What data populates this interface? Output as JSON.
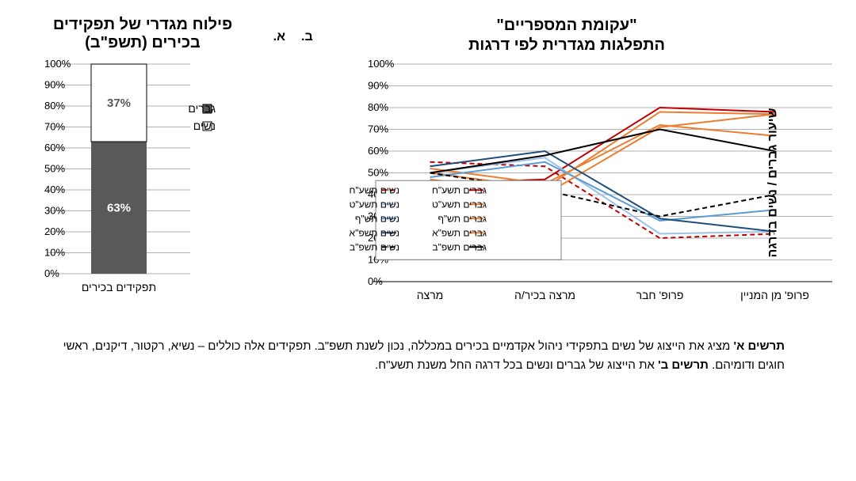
{
  "panelA": {
    "letter": "א.",
    "title_line1": "פילוח מגדרי של תפקידים",
    "title_line2": "בכירים (תשפ\"ב)",
    "type": "stacked-bar",
    "ylim": [
      0,
      100
    ],
    "ytick_step": 10,
    "ytick_suffix": "%",
    "category_label": "תפקידים בכירים",
    "segments": {
      "men": {
        "label": "גברים",
        "value": 63,
        "text": "63%",
        "color": "#595959",
        "text_color": "#ffffff"
      },
      "women": {
        "label": "נשים",
        "value": 37,
        "text": "37%",
        "color": "#ffffff",
        "text_color": "#595959",
        "border": "#000000"
      }
    },
    "legend_marker_border": "#000000",
    "grid_color": "#b0b0b0",
    "background_color": "#ffffff"
  },
  "panelB": {
    "letter": "ב.",
    "title_line1": "\"עקומת המספריים\"",
    "title_line2": "התפלגות מגדרית לפי דרגות",
    "type": "line",
    "ylim": [
      0,
      100
    ],
    "ytick_step": 10,
    "ytick_suffix": "%",
    "yaxis_label": "שיעור גברים / נשים בדרגה",
    "categories": [
      "מרצה",
      "מרצה בכיר/ה",
      "פרופ' חבר",
      "פרופ' מן המניין"
    ],
    "grid_color": "#b0b0b0",
    "background_color": "#ffffff",
    "line_width": 2,
    "series": [
      {
        "key": "men_78",
        "label": "גברים תשע\"ח",
        "color": "#c00000",
        "dash": "",
        "values": [
          45,
          47,
          80,
          78
        ]
      },
      {
        "key": "women_78",
        "label": "נשים תשע\"ח",
        "color": "#c00000",
        "dash": "6,4",
        "values": [
          55,
          53,
          20,
          22
        ]
      },
      {
        "key": "men_79",
        "label": "גברים תשע\"ט",
        "color": "#ed7d31",
        "dash": "",
        "values": [
          50,
          43,
          78,
          77
        ]
      },
      {
        "key": "women_79",
        "label": "נשים תשע\"ט",
        "color": "#9dc3e6",
        "dash": "",
        "values": [
          50,
          57,
          22,
          23
        ]
      },
      {
        "key": "men_80",
        "label": "גברים תש\"ף",
        "color": "#ed7d31",
        "dash": "",
        "values": [
          52,
          45,
          72,
          67
        ]
      },
      {
        "key": "women_80",
        "label": "נשים תש\"ף",
        "color": "#5b9bd5",
        "dash": "",
        "values": [
          48,
          55,
          28,
          33
        ]
      },
      {
        "key": "men_81",
        "label": "גברים תשפ\"א",
        "color": "#ed7d31",
        "dash": "",
        "values": [
          47,
          40,
          71,
          77
        ]
      },
      {
        "key": "women_81",
        "label": "נשים תשפ\"א",
        "color": "#1f4e79",
        "dash": "",
        "values": [
          53,
          60,
          29,
          23
        ]
      },
      {
        "key": "men_82",
        "label": "גברים תשפ\"ב",
        "color": "#000000",
        "dash": "",
        "values": [
          50,
          58,
          70,
          60
        ]
      },
      {
        "key": "women_82",
        "label": "נשים תשפ\"ב",
        "color": "#000000",
        "dash": "6,4",
        "values": [
          50,
          42,
          30,
          40
        ]
      }
    ],
    "legend_cols": 2,
    "legend_border": "#7f7f7f"
  },
  "caption": {
    "part1_bold": "תרשים א'",
    "part1_rest": " מציג את הייצוג של נשים בתפקידי ניהול אקדמיים בכירים במכללה, נכון לשנת תשפ\"ב. תפקידים אלה כוללים – נשיא, רקטור, דיקנים, ראשי חוגים ודומיהם.  ",
    "part2_bold": "תרשים ב'",
    "part2_rest": " את הייצוג של גברים ונשים בכל דרגה החל משנת תשע\"ח."
  }
}
